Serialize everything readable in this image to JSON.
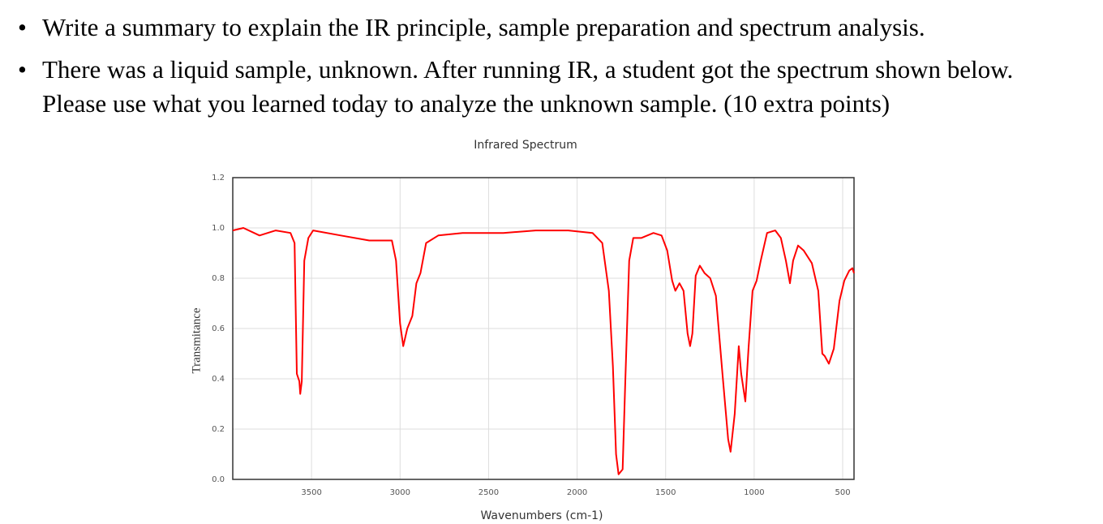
{
  "bullets": [
    "Write a summary to explain the IR principle, sample preparation and spectrum analysis.",
    "There was a liquid sample, unknown. After running IR, a student got the spectrum shown below.",
    "Please use what you learned today to analyze the unknown sample. (10 extra points)"
  ],
  "chart_data": {
    "type": "line",
    "title": "Infrared Spectrum",
    "x_label": "Wavenumbers (cm-1)",
    "y_label": "Transmitance",
    "color": "#ff0000",
    "grid": true,
    "xlim": [
      3945,
      436
    ],
    "xticks": [
      3500,
      3000,
      2500,
      2000,
      1500,
      1000,
      500
    ],
    "ylim": [
      0,
      1.2
    ],
    "yticks": [
      {
        "value": 0,
        "label": "0.0"
      },
      {
        "value": 0.2,
        "label": "0.2"
      },
      {
        "value": 0.4,
        "label": "0.4"
      },
      {
        "value": 0.6,
        "label": "0.6"
      },
      {
        "value": 0.8,
        "label": "0.8"
      },
      {
        "value": 1,
        "label": "1.0"
      },
      {
        "value": 1.2,
        "label": "1.2"
      }
    ],
    "x": [
      3945,
      3885,
      3794,
      3702,
      3619,
      3596,
      3583,
      3569,
      3564,
      3555,
      3541,
      3518,
      3491,
      3335,
      3174,
      3046,
      3023,
      3000,
      2982,
      2959,
      2931,
      2908,
      2885,
      2853,
      2784,
      2647,
      2417,
      2234,
      2050,
      1913,
      1858,
      1821,
      1798,
      1780,
      1766,
      1743,
      1729,
      1706,
      1683,
      1638,
      1569,
      1523,
      1491,
      1463,
      1445,
      1422,
      1399,
      1376,
      1362,
      1349,
      1330,
      1307,
      1280,
      1248,
      1216,
      1179,
      1147,
      1133,
      1110,
      1087,
      1073,
      1050,
      1032,
      1009,
      986,
      963,
      927,
      881,
      849,
      821,
      798,
      780,
      752,
      720,
      674,
      638,
      615,
      601,
      578,
      550,
      518,
      491,
      463,
      445,
      436
    ],
    "values": [
      0.99,
      1.0,
      0.97,
      0.99,
      0.98,
      0.94,
      0.42,
      0.39,
      0.34,
      0.39,
      0.87,
      0.96,
      0.99,
      0.97,
      0.95,
      0.95,
      0.87,
      0.62,
      0.53,
      0.6,
      0.65,
      0.78,
      0.82,
      0.94,
      0.97,
      0.98,
      0.98,
      0.99,
      0.99,
      0.98,
      0.94,
      0.75,
      0.45,
      0.1,
      0.02,
      0.04,
      0.36,
      0.87,
      0.96,
      0.96,
      0.98,
      0.97,
      0.91,
      0.79,
      0.75,
      0.78,
      0.75,
      0.58,
      0.53,
      0.58,
      0.81,
      0.85,
      0.82,
      0.8,
      0.73,
      0.42,
      0.16,
      0.11,
      0.26,
      0.53,
      0.42,
      0.31,
      0.52,
      0.75,
      0.79,
      0.87,
      0.98,
      0.99,
      0.96,
      0.87,
      0.78,
      0.87,
      0.93,
      0.91,
      0.86,
      0.75,
      0.5,
      0.49,
      0.46,
      0.52,
      0.71,
      0.79,
      0.83,
      0.84,
      0.82
    ]
  }
}
